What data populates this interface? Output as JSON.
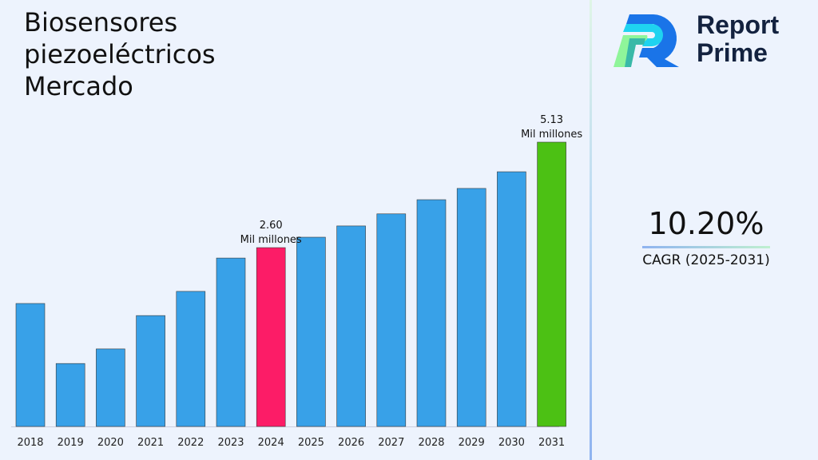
{
  "chart_data": {
    "type": "bar",
    "title": "Biosensores piezoeléctricos Mercado",
    "categories": [
      "2018",
      "2019",
      "2020",
      "2021",
      "2022",
      "2023",
      "2024",
      "2025",
      "2026",
      "2027",
      "2028",
      "2029",
      "2030",
      "2031"
    ],
    "values": [
      1.26,
      -0.18,
      0.17,
      0.97,
      1.55,
      2.35,
      2.6,
      2.85,
      3.12,
      3.41,
      3.75,
      4.02,
      4.42,
      5.13
    ],
    "ylim": [
      -1.69,
      5.13
    ],
    "grid": false,
    "colors": {
      "default": "#38a1e8",
      "highlight_2024": "#fc1c67",
      "highlight_2031": "#4cc114"
    },
    "annotations": [
      {
        "category": "2024",
        "value": "2.60",
        "unit": "Mil millones"
      },
      {
        "category": "2031",
        "value": "5.13",
        "unit": "Mil millones"
      }
    ]
  },
  "brand": {
    "line1": "Report",
    "line2": "Prime"
  },
  "cagr": {
    "value": "10.20%",
    "label": "CAGR (2025-2031)"
  }
}
